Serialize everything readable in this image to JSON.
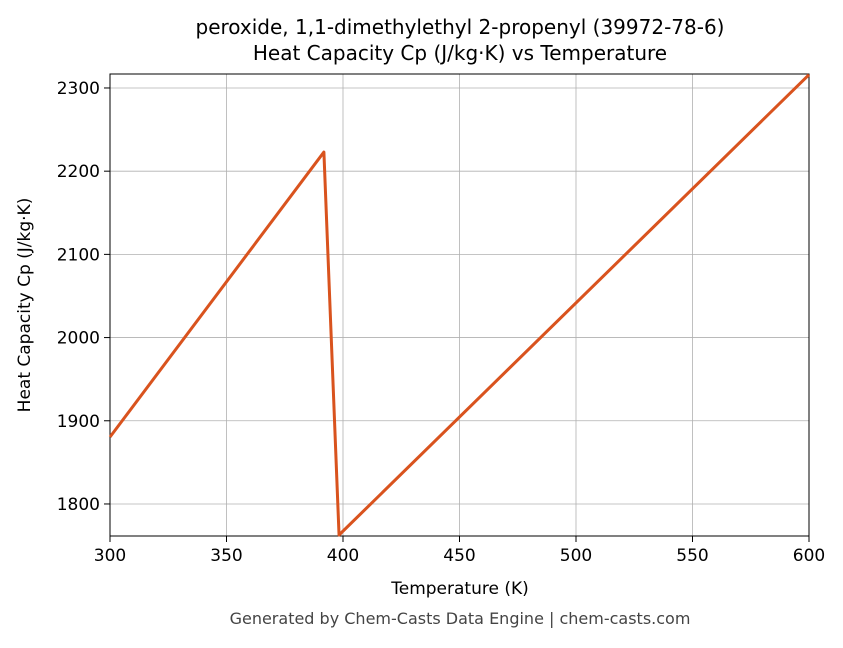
{
  "chart_data": {
    "type": "line",
    "title": "peroxide, 1,1-dimethylethyl 2-propenyl (39972-78-6)",
    "subtitle": "Heat Capacity Cp (J/kg·K) vs Temperature",
    "x_label": "Temperature (K)",
    "y_label": "Heat Capacity Cp (J/kg·K)",
    "footer": "Generated by Chem-Casts Data Engine | chem-casts.com",
    "x": [
      300,
      391.8,
      398.3,
      600
    ],
    "series": [
      {
        "name": "Heat Capacity Cp",
        "color": "#d9531e",
        "values": [
          1880.5,
          2223,
          1762.7,
          2316
        ]
      }
    ],
    "xlim": [
      300,
      600
    ],
    "xticks": [
      300,
      350,
      400,
      450,
      500,
      550,
      600
    ],
    "ylim": [
      1761.5,
      2316.8
    ],
    "yticks": [
      1800,
      1900,
      2000,
      2100,
      2200,
      2300
    ],
    "grid": true
  }
}
